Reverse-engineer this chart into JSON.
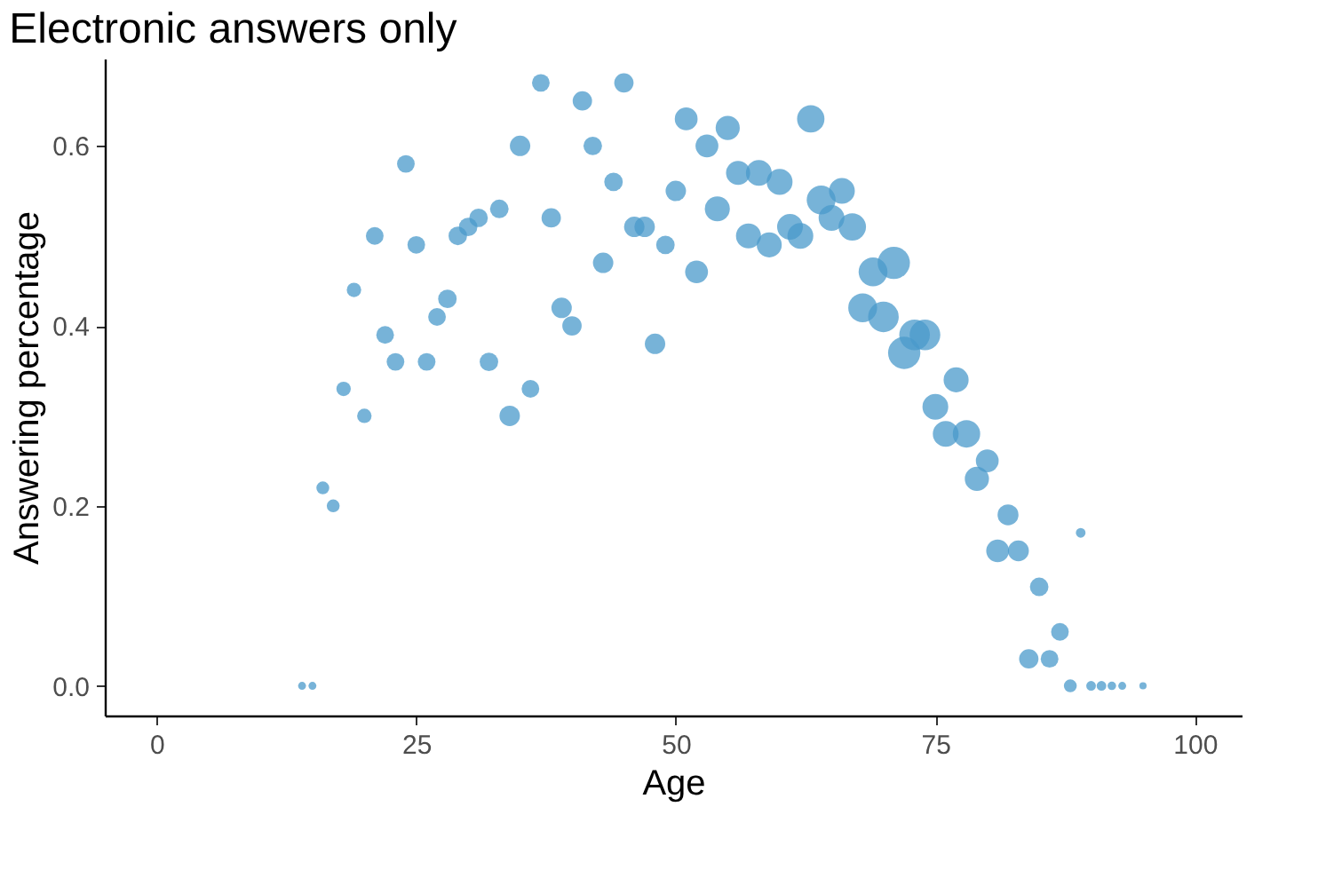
{
  "chart_data": {
    "type": "bubble",
    "title": "Electronic answers only",
    "xlabel": "Age",
    "ylabel": "Answering percentage",
    "x": [
      14,
      15,
      16,
      17,
      18,
      19,
      20,
      21,
      22,
      23,
      24,
      25,
      26,
      27,
      28,
      29,
      30,
      31,
      32,
      33,
      34,
      35,
      36,
      37,
      38,
      39,
      40,
      41,
      42,
      43,
      44,
      45,
      46,
      47,
      48,
      49,
      50,
      51,
      52,
      53,
      54,
      55,
      56,
      57,
      58,
      59,
      60,
      61,
      62,
      63,
      64,
      65,
      66,
      67,
      68,
      69,
      70,
      71,
      72,
      73,
      74,
      75,
      76,
      77,
      78,
      79,
      80,
      81,
      82,
      83,
      84,
      85,
      86,
      87,
      88,
      89,
      90,
      91,
      92,
      93,
      95
    ],
    "series": [
      {
        "color": "#4a9acb",
        "values": [
          0,
          0,
          0.22,
          0.2,
          0.33,
          0.44,
          0.3,
          0.5,
          0.39,
          0.36,
          0.58,
          0.49,
          0.36,
          0.41,
          0.43,
          0.5,
          0.51,
          0.52,
          0.36,
          0.53,
          0.3,
          0.6,
          0.33,
          0.67,
          0.52,
          0.42,
          0.4,
          0.65,
          0.6,
          0.47,
          0.56,
          0.67,
          0.51,
          0.51,
          0.38,
          0.49,
          0.55,
          0.63,
          0.46,
          0.6,
          0.53,
          0.62,
          0.57,
          0.5,
          0.57,
          0.49,
          0.56,
          0.51,
          0.5,
          0.63,
          0.54,
          0.52,
          0.55,
          0.51,
          0.42,
          0.46,
          0.41,
          0.47,
          0.37,
          0.39,
          0.39,
          0.31,
          0.28,
          0.34,
          0.28,
          0.23,
          0.25,
          0.15,
          0.19,
          0.15,
          0.03,
          0.11,
          0.03,
          0.06,
          0,
          0.17,
          0,
          0,
          0,
          0,
          0
        ],
        "sizes": [
          0.06,
          0.06,
          0.16,
          0.16,
          0.2,
          0.2,
          0.2,
          0.3,
          0.3,
          0.3,
          0.3,
          0.3,
          0.3,
          0.3,
          0.33,
          0.33,
          0.33,
          0.33,
          0.33,
          0.33,
          0.4,
          0.4,
          0.3,
          0.3,
          0.36,
          0.4,
          0.36,
          0.36,
          0.33,
          0.4,
          0.33,
          0.36,
          0.4,
          0.4,
          0.4,
          0.33,
          0.4,
          0.5,
          0.5,
          0.5,
          0.6,
          0.56,
          0.56,
          0.6,
          0.64,
          0.6,
          0.64,
          0.64,
          0.64,
          0.72,
          0.8,
          0.64,
          0.64,
          0.72,
          0.8,
          0.8,
          0.9,
          1,
          1,
          0.9,
          0.9,
          0.64,
          0.64,
          0.6,
          0.72,
          0.56,
          0.5,
          0.5,
          0.42,
          0.42,
          0.36,
          0.33,
          0.3,
          0.3,
          0.16,
          0.09,
          0.09,
          0.09,
          0.07,
          0.06,
          0.05
        ]
      }
    ],
    "xlim": [
      -5,
      104.5
    ],
    "ylim": [
      -0.033,
      0.697
    ],
    "xticks": [
      0,
      25,
      50,
      75,
      100
    ],
    "yticks": [
      {
        "value": 0,
        "label": "0.0"
      },
      {
        "value": 0.2,
        "label": "0.2"
      },
      {
        "value": 0.4,
        "label": "0.4"
      },
      {
        "value": 0.6,
        "label": "0.6"
      }
    ],
    "grid": false,
    "legend": false
  }
}
